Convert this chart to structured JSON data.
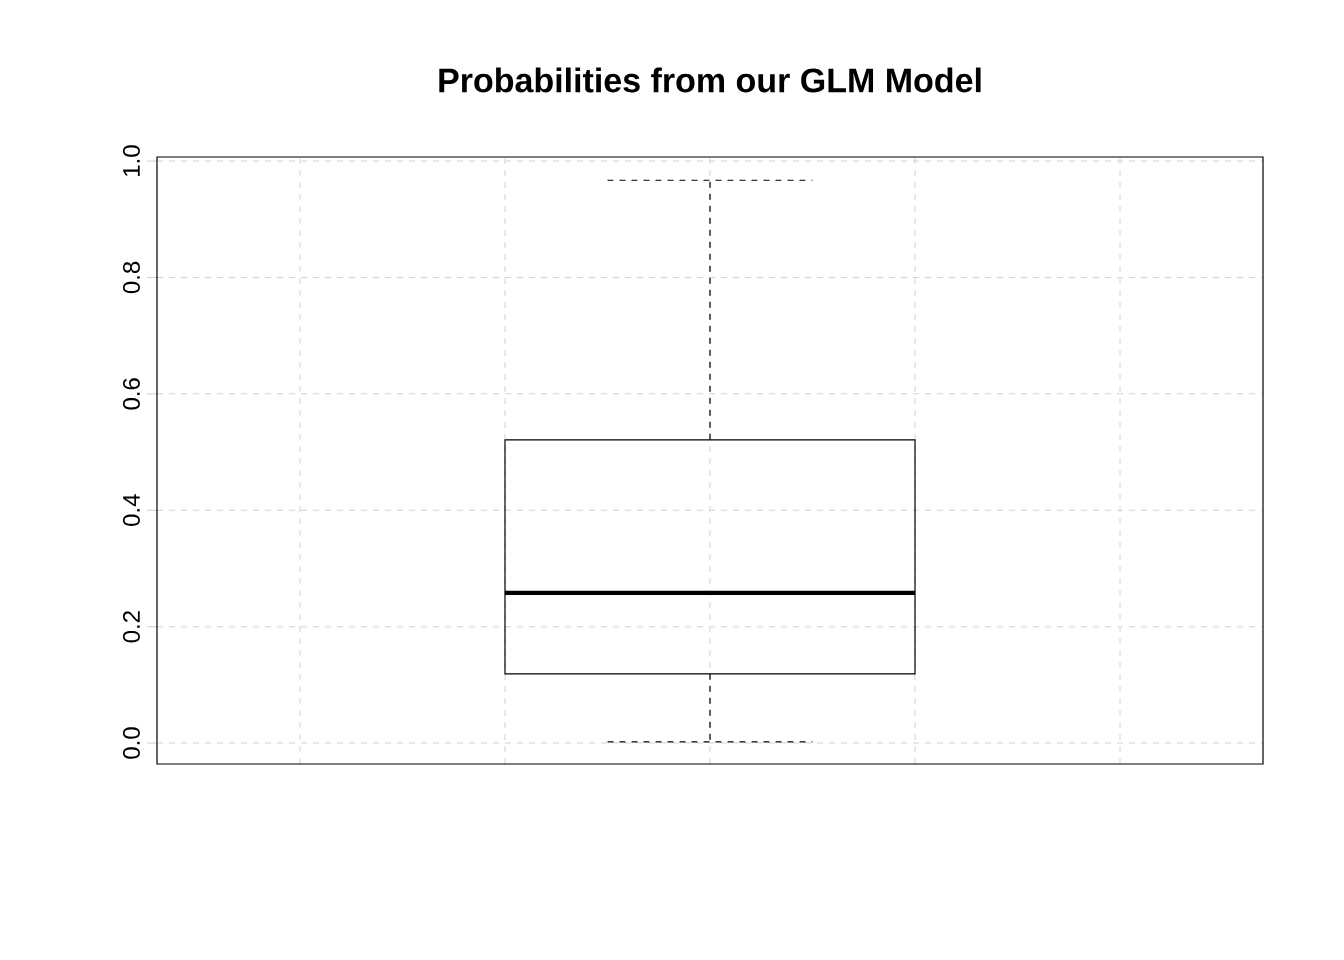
{
  "chart_data": {
    "type": "box",
    "title": "Probabilities from our GLM Model",
    "categories": [
      null
    ],
    "boxes": [
      {
        "low": 0.002,
        "q1": 0.119,
        "median": 0.258,
        "q3": 0.521,
        "high": 0.967
      }
    ],
    "color": "#000000",
    "ylim": [
      -0.036,
      1.007
    ],
    "yticks": [
      {
        "value": 0,
        "label": "0.0"
      },
      {
        "value": 0.2,
        "label": "0.2"
      },
      {
        "value": 0.4,
        "label": "0.4"
      },
      {
        "value": 0.6,
        "label": "0.6"
      },
      {
        "value": 0.8,
        "label": "0.8"
      },
      {
        "value": 1.0,
        "label": "1.0"
      }
    ],
    "grid": true,
    "tick_labels": "y"
  }
}
